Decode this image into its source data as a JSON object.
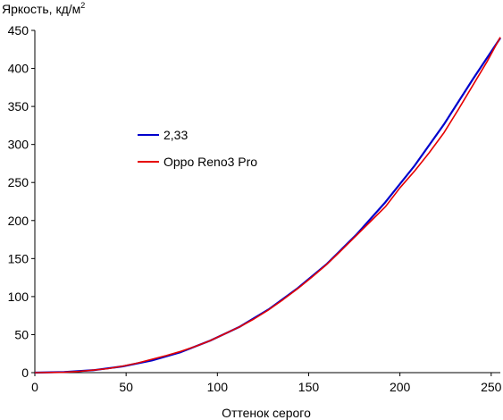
{
  "chart_data": {
    "type": "line",
    "title": "",
    "ylabel": "Яркость, кд/м",
    "ylabel_superscript": "2",
    "xlabel": "Оттенок серого",
    "xlim": [
      0,
      255
    ],
    "ylim": [
      0,
      450
    ],
    "xticks": [
      0,
      50,
      100,
      150,
      200,
      250
    ],
    "yticks": [
      0,
      50,
      100,
      150,
      200,
      250,
      300,
      350,
      400,
      450
    ],
    "grid": false,
    "legend_position": "upper-left inside plot",
    "series": [
      {
        "name": "2,33",
        "color": "#0000cc",
        "x": [
          0,
          16,
          32,
          48,
          64,
          80,
          96,
          112,
          128,
          144,
          160,
          176,
          192,
          208,
          224,
          240,
          255
        ],
        "y": [
          0,
          0.8,
          3.2,
          8.2,
          16,
          27,
          42,
          60,
          83,
          111,
          143,
          181,
          224,
          272,
          326,
          386,
          440
        ]
      },
      {
        "name": "Oppo Reno3 Pro",
        "color": "#e60000",
        "x": [
          0,
          16,
          24,
          32,
          40,
          48,
          56,
          64,
          72,
          80,
          88,
          96,
          104,
          112,
          120,
          128,
          136,
          144,
          152,
          160,
          168,
          176,
          184,
          192,
          200,
          208,
          216,
          224,
          232,
          240,
          248,
          255
        ],
        "y": [
          0,
          0.5,
          1.6,
          3.3,
          5.3,
          8.5,
          12.5,
          17.5,
          22.5,
          28,
          34.5,
          42,
          51,
          60,
          70.5,
          82.5,
          96,
          110.5,
          126,
          142.5,
          161,
          180,
          199,
          218,
          243,
          265,
          289,
          315,
          346,
          378,
          410,
          441
        ]
      }
    ]
  }
}
